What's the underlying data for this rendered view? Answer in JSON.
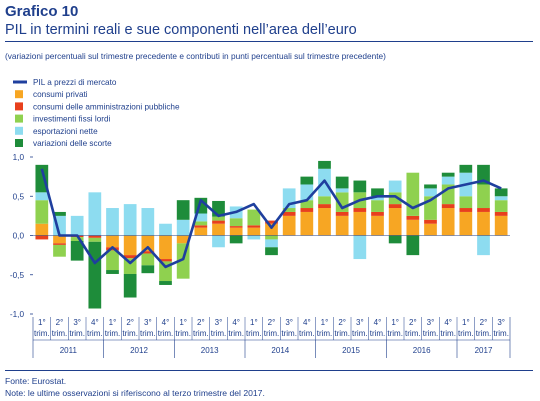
{
  "header": {
    "label": "Grafico 10",
    "title": "PIL in termini reali e sue componenti nell’area dell’euro",
    "note": "(variazioni percentuali sul trimestre precedente e contributi in punti percentuali sul trimestre precedente)"
  },
  "footer": {
    "source": "Fonte: Eurostat.",
    "note": "Note: le ultime osservazioni si riferiscono al terzo trimestre del 2017."
  },
  "chart_data": {
    "type": "bar",
    "stacked": true,
    "ylim": [
      -1.0,
      1.0
    ],
    "yticks": [
      "1,0",
      "0,5",
      "0,0",
      "-0,5",
      "-1,0"
    ],
    "ytick_values": [
      1.0,
      0.5,
      0.0,
      -0.5,
      -1.0
    ],
    "quarter_labels": [
      "1°",
      "2°",
      "3°",
      "4°"
    ],
    "quarter_sublabel": "trim.",
    "years": [
      "2011",
      "2012",
      "2013",
      "2014",
      "2015",
      "2016",
      "2017"
    ],
    "categories": [
      "2011Q1",
      "2011Q2",
      "2011Q3",
      "2011Q4",
      "2012Q1",
      "2012Q2",
      "2012Q3",
      "2012Q4",
      "2013Q1",
      "2013Q2",
      "2013Q3",
      "2013Q4",
      "2014Q1",
      "2014Q2",
      "2014Q3",
      "2014Q4",
      "2015Q1",
      "2015Q2",
      "2015Q3",
      "2015Q4",
      "2016Q1",
      "2016Q2",
      "2016Q3",
      "2016Q4",
      "2017Q1",
      "2017Q2",
      "2017Q3"
    ],
    "legend": [
      {
        "name": "PIL  a prezzi di mercato",
        "color": "#1f3f9e",
        "kind": "line"
      },
      {
        "name": "consumi  privati",
        "color": "#f7a623",
        "kind": "bar"
      },
      {
        "name": "consumi  delle amministrazioni  pubbliche",
        "color": "#e8401c",
        "kind": "bar"
      },
      {
        "name": "investimenti  fissi lordi",
        "color": "#8fd14f",
        "kind": "bar"
      },
      {
        "name": "esportazioni  nette",
        "color": "#8ddcf0",
        "kind": "bar"
      },
      {
        "name": "variazioni  delle scorte",
        "color": "#1e8c3a",
        "kind": "bar"
      }
    ],
    "series": [
      {
        "name": "consumi  privati",
        "values": [
          0.15,
          -0.1,
          0.0,
          0.0,
          -0.15,
          -0.25,
          -0.2,
          -0.3,
          -0.1,
          0.1,
          0.15,
          0.1,
          0.1,
          0.15,
          0.25,
          0.3,
          0.35,
          0.25,
          0.3,
          0.25,
          0.35,
          0.2,
          0.15,
          0.35,
          0.3,
          0.3,
          0.25
        ]
      },
      {
        "name": "consumi  delle amministrazioni  pubbliche",
        "values": [
          -0.05,
          -0.02,
          -0.02,
          -0.03,
          -0.04,
          -0.04,
          -0.03,
          -0.03,
          0.0,
          0.03,
          0.04,
          0.02,
          0.03,
          0.04,
          0.05,
          0.05,
          0.05,
          0.05,
          0.05,
          0.05,
          0.05,
          0.05,
          0.05,
          0.05,
          0.05,
          0.05,
          0.05
        ]
      },
      {
        "name": "investimenti  fissi lordi",
        "values": [
          0.3,
          -0.15,
          -0.05,
          -0.05,
          -0.25,
          -0.2,
          -0.15,
          -0.25,
          -0.45,
          0.05,
          0.05,
          0.1,
          0.2,
          -0.05,
          0.05,
          0.1,
          0.1,
          0.25,
          0.2,
          0.15,
          0.15,
          0.55,
          0.3,
          0.25,
          0.15,
          0.3,
          0.15
        ]
      },
      {
        "name": "esportazioni  nette",
        "values": [
          0.1,
          0.25,
          0.25,
          0.55,
          0.35,
          0.4,
          0.35,
          0.15,
          0.2,
          0.1,
          -0.15,
          0.15,
          -0.05,
          -0.1,
          0.25,
          0.2,
          0.35,
          0.05,
          -0.3,
          0.05,
          0.15,
          0.0,
          0.1,
          0.1,
          0.3,
          -0.25,
          0.05
        ]
      },
      {
        "name": "variazioni  delle scorte",
        "values": [
          0.35,
          0.05,
          -0.25,
          -0.85,
          -0.05,
          -0.3,
          -0.1,
          -0.05,
          0.25,
          0.2,
          0.2,
          -0.1,
          0.0,
          -0.1,
          0.0,
          0.1,
          0.1,
          0.15,
          0.15,
          0.1,
          -0.1,
          -0.25,
          0.05,
          0.05,
          0.1,
          0.25,
          0.1
        ]
      }
    ],
    "line": {
      "name": "PIL  a prezzi di mercato",
      "values": [
        0.85,
        0.0,
        0.0,
        -0.35,
        -0.15,
        -0.35,
        -0.15,
        -0.4,
        -0.3,
        0.45,
        0.25,
        0.3,
        0.4,
        0.1,
        0.4,
        0.45,
        0.7,
        0.35,
        0.45,
        0.5,
        0.5,
        0.35,
        0.45,
        0.6,
        0.65,
        0.7,
        0.6
      ]
    }
  }
}
